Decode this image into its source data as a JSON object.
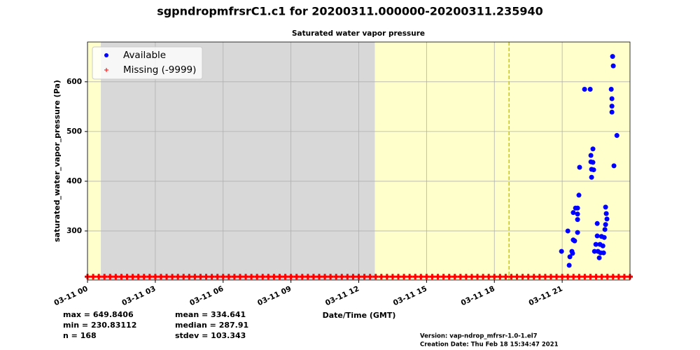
{
  "chart_data": {
    "type": "scatter",
    "title": "sgpndropmfrsrC1.c1 for 20200311.000000-20200311.235940",
    "subtitle": "Saturated water vapor pressure",
    "x_label": "Date/Time (GMT)",
    "y_label": "saturated_water_vapor_pressure (Pa)",
    "xlim": [
      0,
      24
    ],
    "xticks": [
      {
        "value": 0,
        "label": "03-11 00"
      },
      {
        "value": 3,
        "label": "03-11 03"
      },
      {
        "value": 6,
        "label": "03-11 06"
      },
      {
        "value": 9,
        "label": "03-11 09"
      },
      {
        "value": 12,
        "label": "03-11 12"
      },
      {
        "value": 15,
        "label": "03-11 15"
      },
      {
        "value": 18,
        "label": "03-11 18"
      },
      {
        "value": 21,
        "label": "03-11 21"
      }
    ],
    "ylim": [
      201.4,
      680
    ],
    "yticks": [
      300,
      400,
      500,
      600
    ],
    "grid": true,
    "legend": "upper left",
    "background": "#ffffcc",
    "regions": [
      {
        "start": 0.59,
        "end": 12.71,
        "color": "#d8d8d8"
      }
    ],
    "vlines": [
      {
        "x": 18.65,
        "color": "#c8c800"
      }
    ],
    "series": [
      {
        "name": "Available",
        "color": "#0000ff",
        "marker": "o",
        "x": [
          20.97,
          21.25,
          21.31,
          21.34,
          21.43,
          21.46,
          21.49,
          21.49,
          21.55,
          21.59,
          21.68,
          21.68,
          21.68,
          21.68,
          21.74,
          21.77,
          21.99,
          22.24,
          22.27,
          22.27,
          22.3,
          22.3,
          22.36,
          22.36,
          22.39,
          22.43,
          22.49,
          22.55,
          22.55,
          22.58,
          22.64,
          22.67,
          22.7,
          22.74,
          22.8,
          22.83,
          22.86,
          22.89,
          22.92,
          22.92,
          22.95,
          22.98,
          23.17,
          23.2,
          23.2,
          23.2,
          23.23,
          23.26,
          23.29,
          23.42
        ],
        "values": [
          259,
          300,
          231,
          248,
          259,
          255,
          337,
          282,
          280,
          346,
          346,
          334,
          323,
          297,
          372,
          428,
          585,
          585,
          452,
          439,
          424,
          408,
          438,
          465,
          423,
          259,
          273,
          315,
          290,
          259,
          246,
          273,
          256,
          289,
          270,
          256,
          287,
          303,
          313,
          348,
          335,
          324,
          585,
          566,
          551,
          539,
          651,
          632,
          431,
          492
        ]
      },
      {
        "name": "Missing (-9999)",
        "color": "#ff0000",
        "marker": "+",
        "x": [
          0,
          0.25,
          0.5,
          0.75,
          1,
          1.25,
          1.5,
          1.75,
          2,
          2.25,
          2.5,
          2.75,
          3,
          3.25,
          3.5,
          3.75,
          4,
          4.25,
          4.5,
          4.75,
          5,
          5.25,
          5.5,
          5.75,
          6,
          6.25,
          6.5,
          6.75,
          7,
          7.25,
          7.5,
          7.75,
          8,
          8.25,
          8.5,
          8.75,
          9,
          9.25,
          9.5,
          9.75,
          10,
          10.25,
          10.5,
          10.75,
          11,
          11.25,
          11.5,
          11.75,
          12,
          12.25,
          12.5,
          12.75,
          13,
          13.25,
          13.5,
          13.75,
          14,
          14.25,
          14.5,
          14.75,
          15,
          15.25,
          15.5,
          15.75,
          16,
          16.25,
          16.5,
          16.75,
          17,
          17.25,
          17.5,
          17.75,
          18,
          18.25,
          18.5,
          18.75,
          19,
          19.25,
          19.5,
          19.75,
          20,
          20.25,
          20.5,
          20.75,
          21,
          21.25,
          21.5,
          21.75,
          22,
          22.25,
          22.5,
          22.75,
          23,
          23.25,
          23.5,
          23.75,
          24
        ],
        "values": [
          208,
          208,
          208,
          208,
          208,
          208,
          208,
          208,
          208,
          208,
          208,
          208,
          208,
          208,
          208,
          208,
          208,
          208,
          208,
          208,
          208,
          208,
          208,
          208,
          208,
          208,
          208,
          208,
          208,
          208,
          208,
          208,
          208,
          208,
          208,
          208,
          208,
          208,
          208,
          208,
          208,
          208,
          208,
          208,
          208,
          208,
          208,
          208,
          208,
          208,
          208,
          208,
          208,
          208,
          208,
          208,
          208,
          208,
          208,
          208,
          208,
          208,
          208,
          208,
          208,
          208,
          208,
          208,
          208,
          208,
          208,
          208,
          208,
          208,
          208,
          208,
          208,
          208,
          208,
          208,
          208,
          208,
          208,
          208,
          208,
          208,
          208,
          208,
          208,
          208,
          208,
          208,
          208,
          208,
          208,
          208,
          208
        ]
      }
    ],
    "stats": [
      "max = 649.8406",
      "min = 230.83112",
      "n = 168",
      "mean = 334.641",
      "median = 287.91",
      "stdev = 103.343"
    ],
    "footer": [
      "Version: vap-ndrop_mfrsr-1.0-1.el7",
      "Creation Date: Thu Feb 18 15:34:47 2021"
    ]
  }
}
